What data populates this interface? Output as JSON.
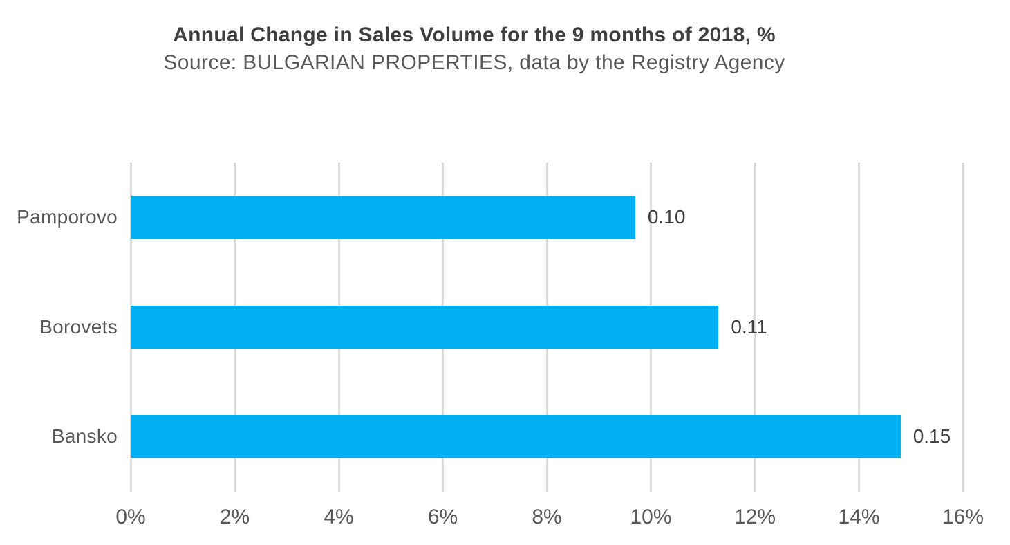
{
  "colors": {
    "bar": "#00B0F0",
    "gridline": "#D9D9D9",
    "title_text": "#3F3F3F",
    "subtitle_text": "#595959",
    "axis_text": "#595959",
    "data_label_text": "#404040",
    "background": "#FFFFFF"
  },
  "chart_data": {
    "type": "bar",
    "orientation": "horizontal",
    "title": "Annual Change in Sales Volume for the 9 months of 2018, %",
    "subtitle": "Source: BULGARIAN PROPERTIES, data by the Registry Agency",
    "categories": [
      "Pamporovo",
      "Borovets",
      "Bansko"
    ],
    "values_percent": [
      9.7,
      11.3,
      14.8
    ],
    "data_labels": [
      "0.10",
      "0.11",
      "0.15"
    ],
    "x_axis": {
      "min": 0,
      "max": 16,
      "step": 2,
      "tick_labels": [
        "0%",
        "2%",
        "4%",
        "6%",
        "8%",
        "10%",
        "12%",
        "14%",
        "16%"
      ]
    },
    "grid": true,
    "legend": false
  }
}
